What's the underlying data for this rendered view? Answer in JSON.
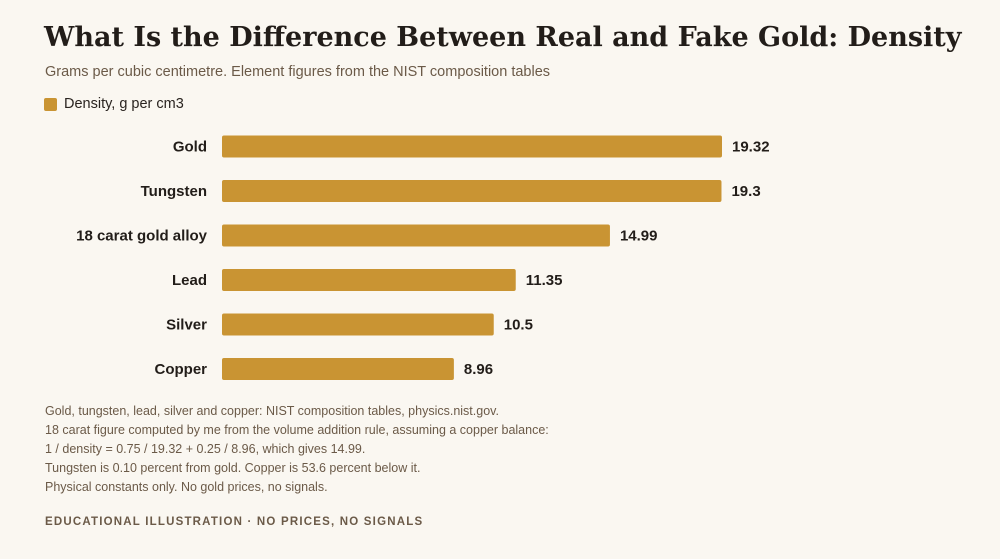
{
  "header": {
    "title": "What Is the Difference Between Real and Fake Gold: Density",
    "subtitle": "Grams per cubic centimetre. Element figures from the NIST composition tables"
  },
  "legend": {
    "label": "Density, g per cm3",
    "color": "#c99433"
  },
  "chart_data": {
    "type": "bar",
    "orientation": "horizontal",
    "categories": [
      "Gold",
      "Tungsten",
      "18 carat gold alloy",
      "Lead",
      "Silver",
      "Copper"
    ],
    "series": [
      {
        "name": "Density, g per cm3",
        "values": [
          19.32,
          19.3,
          14.99,
          11.35,
          10.5,
          8.96
        ],
        "labels": [
          "19.32",
          "19.3",
          "14.99",
          "11.35",
          "10.5",
          "8.96"
        ],
        "color": "#c99433"
      }
    ],
    "xlim": [
      0,
      19.32
    ],
    "grid": false,
    "legend_position": "top-left"
  },
  "notes": {
    "lines": [
      "Gold, tungsten, lead, silver and copper: NIST composition tables, physics.nist.gov.",
      "18 carat figure computed by me from the volume addition rule, assuming a copper balance:",
      "1 / density = 0.75 / 19.32 + 0.25 / 8.96, which gives 14.99.",
      "Tungsten is 0.10 percent from gold. Copper is 53.6 percent below it.",
      "Physical constants only. No gold prices, no signals."
    ]
  },
  "footer": {
    "text": "EDUCATIONAL ILLUSTRATION · NO PRICES, NO SIGNALS"
  }
}
